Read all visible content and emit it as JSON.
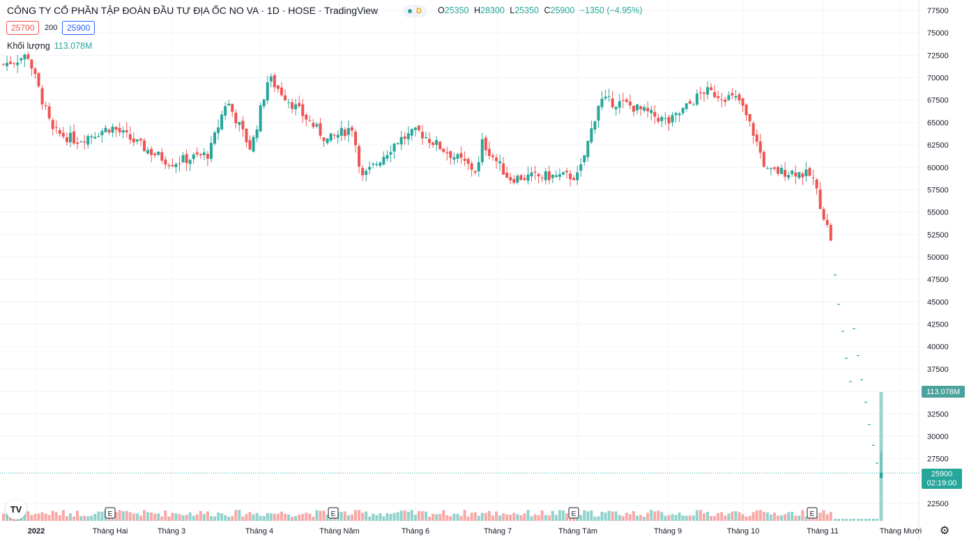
{
  "legend": {
    "title": "CÔNG TY CỔ PHẦN TẬP ĐOÀN ĐẦU TƯ ĐỊA ỐC NO VA · 1D · HOSE · TradingView",
    "status_letter": "D",
    "open_label": "O",
    "open": "25350",
    "high_label": "H",
    "high": "28300",
    "low_label": "L",
    "low": "25350",
    "close_label": "C",
    "close": "25900",
    "change": "−1350 (−4.95%)",
    "bid": "25700",
    "spread": "200",
    "ask": "25900",
    "volume_label": "Khối lượng",
    "volume": "113.078M"
  },
  "badges": {
    "volume": "113.078M",
    "last_price": "25900",
    "countdown": "02:19:00"
  },
  "icons": {
    "logo": "tradingview-logo-icon",
    "settings": "settings-icon"
  },
  "colors": {
    "up": "#26a69a",
    "down": "#ef5350",
    "grid": "#f0f3fa"
  },
  "chart_data": {
    "type": "candlestick",
    "title": "CÔNG TY CỔ PHẦN TẬP ĐOÀN ĐẦU TƯ ĐỊA ỐC NO VA",
    "interval": "1D",
    "exchange": "HOSE",
    "ylim": [
      21000,
      78500
    ],
    "y_ticks": [
      77500,
      75000,
      72500,
      70000,
      67500,
      65000,
      62500,
      60000,
      57500,
      55000,
      52500,
      50000,
      47500,
      45000,
      42500,
      40000,
      37500,
      35000,
      32500,
      30000,
      27500,
      22500
    ],
    "x_ticks": [
      "2022",
      "Tháng Hai",
      "Tháng 3",
      "Tháng 4",
      "Tháng Năm",
      "Tháng 6",
      "Tháng 7",
      "Tháng Tám",
      "Tháng 9",
      "Tháng 10",
      "Tháng 11",
      "Tháng Mười"
    ],
    "grid": true,
    "events": [
      "E",
      "E",
      "E",
      "E"
    ],
    "series_monthly_approx": [
      {
        "month": "2022-01",
        "open": 71500,
        "high": 72800,
        "low": 62500,
        "close": 64000
      },
      {
        "month": "2022-02",
        "open": 64000,
        "high": 65500,
        "low": 61500,
        "close": 62000
      },
      {
        "month": "2022-03",
        "open": 62000,
        "high": 66500,
        "low": 59500,
        "close": 60500
      },
      {
        "month": "2022-04",
        "open": 61000,
        "high": 70800,
        "low": 63200,
        "close": 67500
      },
      {
        "month": "2022-05",
        "open": 66500,
        "high": 67000,
        "low": 58200,
        "close": 62000
      },
      {
        "month": "2022-06",
        "open": 63000,
        "high": 64000,
        "low": 60000,
        "close": 61000
      },
      {
        "month": "2022-07",
        "open": 60500,
        "high": 63200,
        "low": 57800,
        "close": 58800
      },
      {
        "month": "2022-08",
        "open": 58800,
        "high": 68000,
        "low": 58200,
        "close": 67500
      },
      {
        "month": "2022-09",
        "open": 67000,
        "high": 69800,
        "low": 64500,
        "close": 68000
      },
      {
        "month": "2022-10",
        "open": 68000,
        "high": 68500,
        "low": 57000,
        "close": 59000
      },
      {
        "month": "2022-11",
        "open": 59000,
        "high": 60000,
        "low": 25350,
        "close": 25900
      }
    ],
    "recent_floor_sessions_close": [
      52000,
      48000,
      44700,
      41700,
      38700,
      36100,
      33800,
      31300,
      29000,
      27000
    ],
    "last": {
      "open": 25350,
      "high": 28300,
      "low": 25350,
      "close": 25900,
      "volume": "113.078M"
    }
  }
}
